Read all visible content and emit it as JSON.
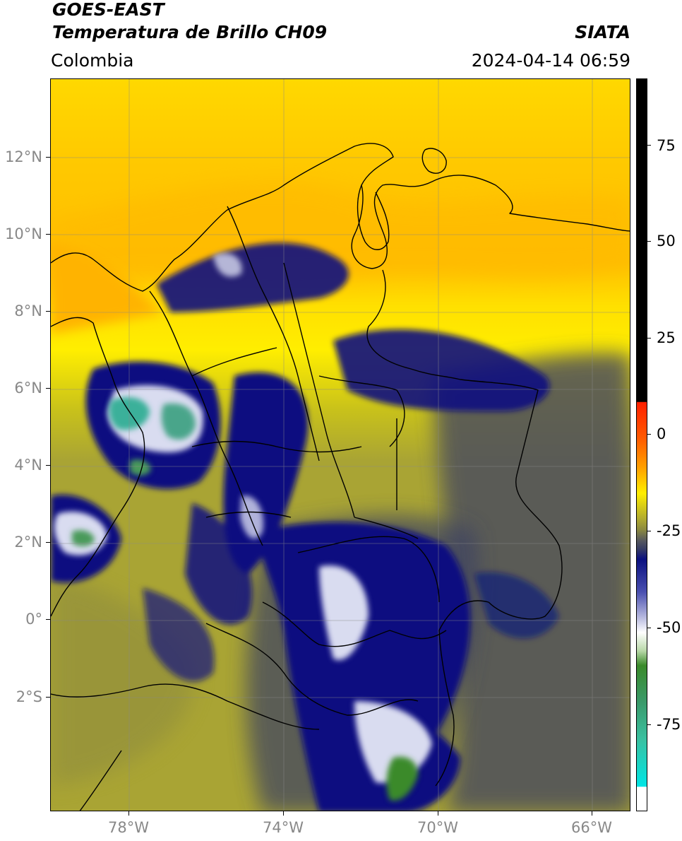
{
  "header": {
    "satellite": "GOES-EAST",
    "product": "Temperatura de Brillo CH09",
    "brand": "SIATA",
    "region": "Colombia",
    "timestamp": "2024-04-14 06:59"
  },
  "map": {
    "lat_ticks": [
      "12°N",
      "10°N",
      "8°N",
      "6°N",
      "4°N",
      "2°N",
      "0°",
      "2°S"
    ],
    "lon_ticks": [
      "78°W",
      "74°W",
      "70°W",
      "66°W"
    ],
    "colorbar": {
      "ticks": [
        "75",
        "50",
        "25",
        "0",
        "-25",
        "-50",
        "-75"
      ],
      "colors": {
        "black": "#000000",
        "red": "#e31a1c",
        "orange": "#ff8c00",
        "yellow": "#ffee00",
        "olive": "#a9a434",
        "slate": "#3a3f63",
        "navy": "#0a1080",
        "white": "#ffffff",
        "green": "#3a8a2a",
        "teal": "#3ac0a0",
        "cyan": "#00e5e5"
      }
    }
  }
}
